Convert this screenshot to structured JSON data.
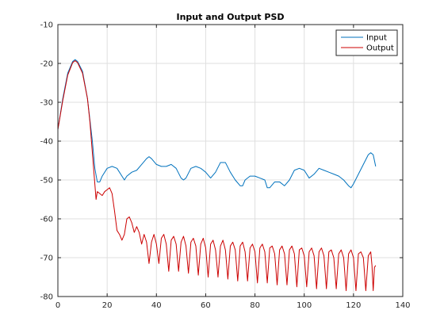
{
  "chart_data": {
    "type": "line",
    "title": "Input and Output PSD",
    "xlabel": "",
    "ylabel": "",
    "xlim": [
      0,
      140
    ],
    "ylim": [
      -80,
      -10
    ],
    "x_ticks": [
      0,
      20,
      40,
      60,
      80,
      100,
      120,
      140
    ],
    "y_ticks": [
      -80,
      -70,
      -60,
      -50,
      -40,
      -30,
      -20,
      -10
    ],
    "grid": true,
    "legend_position": "top-right",
    "series": [
      {
        "name": "Input",
        "color": "#0072bd",
        "points": [
          [
            0,
            -37
          ],
          [
            2,
            -29
          ],
          [
            4,
            -22.5
          ],
          [
            6,
            -19.5
          ],
          [
            7,
            -19
          ],
          [
            8,
            -19.5
          ],
          [
            10,
            -22
          ],
          [
            12,
            -29
          ],
          [
            14,
            -40
          ],
          [
            15,
            -47
          ],
          [
            16,
            -50.5
          ],
          [
            17,
            -50.5
          ],
          [
            18,
            -49
          ],
          [
            20,
            -47
          ],
          [
            22,
            -46.5
          ],
          [
            24,
            -47
          ],
          [
            26,
            -49
          ],
          [
            27,
            -50
          ],
          [
            28,
            -49
          ],
          [
            30,
            -48
          ],
          [
            32,
            -47.5
          ],
          [
            34,
            -46
          ],
          [
            36,
            -44.5
          ],
          [
            37,
            -44
          ],
          [
            38,
            -44.5
          ],
          [
            40,
            -46
          ],
          [
            42,
            -46.5
          ],
          [
            44,
            -46.5
          ],
          [
            46,
            -46
          ],
          [
            48,
            -47
          ],
          [
            50,
            -49.5
          ],
          [
            51,
            -50
          ],
          [
            52,
            -49.5
          ],
          [
            54,
            -47
          ],
          [
            56,
            -46.5
          ],
          [
            58,
            -47
          ],
          [
            60,
            -48
          ],
          [
            62,
            -49.5
          ],
          [
            64,
            -48
          ],
          [
            66,
            -45.5
          ],
          [
            68,
            -45.5
          ],
          [
            70,
            -48
          ],
          [
            72,
            -50
          ],
          [
            74,
            -51.5
          ],
          [
            75,
            -51.5
          ],
          [
            76,
            -50
          ],
          [
            78,
            -49
          ],
          [
            80,
            -49
          ],
          [
            82,
            -49.5
          ],
          [
            84,
            -50
          ],
          [
            85,
            -52
          ],
          [
            86,
            -52
          ],
          [
            88,
            -50.5
          ],
          [
            90,
            -50.5
          ],
          [
            92,
            -51.5
          ],
          [
            94,
            -50
          ],
          [
            96,
            -47.5
          ],
          [
            98,
            -47
          ],
          [
            100,
            -47.5
          ],
          [
            102,
            -49.5
          ],
          [
            104,
            -48.5
          ],
          [
            106,
            -47
          ],
          [
            108,
            -47.5
          ],
          [
            110,
            -48
          ],
          [
            112,
            -48.5
          ],
          [
            114,
            -49
          ],
          [
            116,
            -50
          ],
          [
            118,
            -51.5
          ],
          [
            119,
            -52
          ],
          [
            120,
            -51
          ],
          [
            122,
            -48.5
          ],
          [
            124,
            -46
          ],
          [
            126,
            -43.5
          ],
          [
            127,
            -43
          ],
          [
            128,
            -43.5
          ],
          [
            129,
            -46.5
          ]
        ]
      },
      {
        "name": "Output",
        "color": "#cc0000",
        "points": [
          [
            0,
            -37
          ],
          [
            2,
            -29.5
          ],
          [
            4,
            -23
          ],
          [
            6,
            -19.8
          ],
          [
            7,
            -19.3
          ],
          [
            8,
            -19.8
          ],
          [
            10,
            -22.5
          ],
          [
            12,
            -29
          ],
          [
            13,
            -35
          ],
          [
            14,
            -43
          ],
          [
            15,
            -51
          ],
          [
            15.5,
            -55
          ],
          [
            16,
            -53
          ],
          [
            17,
            -53.5
          ],
          [
            18,
            -54
          ],
          [
            19,
            -53
          ],
          [
            20,
            -52.5
          ],
          [
            21,
            -52
          ],
          [
            22,
            -53.5
          ],
          [
            23,
            -58
          ],
          [
            24,
            -63
          ],
          [
            25,
            -64
          ],
          [
            26,
            -65.5
          ],
          [
            27,
            -64
          ],
          [
            28,
            -60
          ],
          [
            29,
            -59.5
          ],
          [
            30,
            -61
          ],
          [
            31,
            -63.5
          ],
          [
            32,
            -62
          ],
          [
            33,
            -63.5
          ],
          [
            34,
            -66.5
          ],
          [
            35,
            -64
          ],
          [
            36,
            -66
          ],
          [
            37,
            -71.5
          ],
          [
            38,
            -66
          ],
          [
            39,
            -64
          ],
          [
            40,
            -66.5
          ],
          [
            41,
            -71.5
          ],
          [
            42,
            -65
          ],
          [
            43,
            -64
          ],
          [
            44,
            -66.5
          ],
          [
            45,
            -73.5
          ],
          [
            46,
            -65.5
          ],
          [
            47,
            -64.5
          ],
          [
            48,
            -66.5
          ],
          [
            49,
            -73.5
          ],
          [
            50,
            -66
          ],
          [
            51,
            -64.5
          ],
          [
            52,
            -67
          ],
          [
            53,
            -74
          ],
          [
            54,
            -66
          ],
          [
            55,
            -65
          ],
          [
            56,
            -67
          ],
          [
            57,
            -74.5
          ],
          [
            58,
            -66.5
          ],
          [
            59,
            -65
          ],
          [
            60,
            -67.5
          ],
          [
            61,
            -75
          ],
          [
            62,
            -66.5
          ],
          [
            63,
            -65.5
          ],
          [
            64,
            -68
          ],
          [
            65,
            -75
          ],
          [
            66,
            -67
          ],
          [
            67,
            -65.5
          ],
          [
            68,
            -68
          ],
          [
            69,
            -75.5
          ],
          [
            70,
            -67
          ],
          [
            71,
            -66
          ],
          [
            72,
            -68
          ],
          [
            73,
            -76
          ],
          [
            74,
            -67
          ],
          [
            75,
            -66
          ],
          [
            76,
            -68.5
          ],
          [
            77,
            -76
          ],
          [
            78,
            -67.5
          ],
          [
            79,
            -66.5
          ],
          [
            80,
            -68.5
          ],
          [
            81,
            -76.5
          ],
          [
            82,
            -67.5
          ],
          [
            83,
            -66.5
          ],
          [
            84,
            -68.5
          ],
          [
            85,
            -76.5
          ],
          [
            86,
            -67.5
          ],
          [
            87,
            -67
          ],
          [
            88,
            -69
          ],
          [
            89,
            -77
          ],
          [
            90,
            -68
          ],
          [
            91,
            -67
          ],
          [
            92,
            -69
          ],
          [
            93,
            -77
          ],
          [
            94,
            -68
          ],
          [
            95,
            -67
          ],
          [
            96,
            -69
          ],
          [
            97,
            -77.5
          ],
          [
            98,
            -68
          ],
          [
            99,
            -67.5
          ],
          [
            100,
            -69.5
          ],
          [
            101,
            -77.5
          ],
          [
            102,
            -68.5
          ],
          [
            103,
            -67.5
          ],
          [
            104,
            -69.5
          ],
          [
            105,
            -78
          ],
          [
            106,
            -68.5
          ],
          [
            107,
            -67.5
          ],
          [
            108,
            -69.5
          ],
          [
            109,
            -78
          ],
          [
            110,
            -68.5
          ],
          [
            111,
            -68
          ],
          [
            112,
            -70
          ],
          [
            113,
            -78
          ],
          [
            114,
            -69
          ],
          [
            115,
            -68
          ],
          [
            116,
            -70
          ],
          [
            117,
            -78.5
          ],
          [
            118,
            -69
          ],
          [
            119,
            -68
          ],
          [
            120,
            -70
          ],
          [
            121,
            -78.5
          ],
          [
            122,
            -69
          ],
          [
            123,
            -68.5
          ],
          [
            124,
            -70
          ],
          [
            125,
            -78.5
          ],
          [
            126,
            -69.5
          ],
          [
            127,
            -68.5
          ],
          [
            127.5,
            -72
          ],
          [
            128,
            -78.5
          ],
          [
            128.5,
            -72.5
          ],
          [
            129,
            -72
          ]
        ]
      }
    ]
  }
}
